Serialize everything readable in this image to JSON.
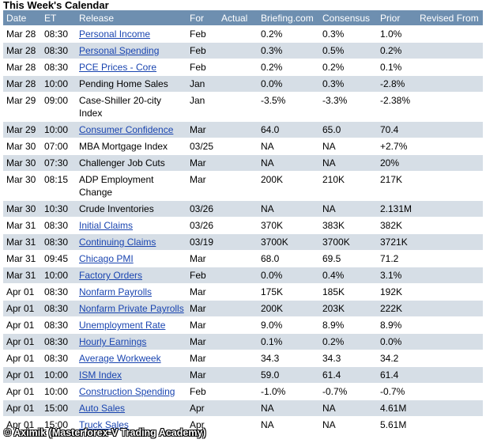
{
  "title": "This Week's Calendar",
  "columns": [
    "Date",
    "ET",
    "Release",
    "For",
    "Actual",
    "Briefing.com",
    "Consensus",
    "Prior",
    "Revised From"
  ],
  "rows": [
    {
      "date": "Mar 28",
      "et": "08:30",
      "release": "Personal Income",
      "link": true,
      "for": "Feb",
      "actual": "",
      "briefing": "0.2%",
      "consensus": "0.3%",
      "prior": "1.0%",
      "revised": ""
    },
    {
      "date": "Mar 28",
      "et": "08:30",
      "release": "Personal Spending",
      "link": true,
      "for": "Feb",
      "actual": "",
      "briefing": "0.3%",
      "consensus": "0.5%",
      "prior": "0.2%",
      "revised": ""
    },
    {
      "date": "Mar 28",
      "et": "08:30",
      "release": "PCE Prices - Core",
      "link": true,
      "for": "Feb",
      "actual": "",
      "briefing": "0.2%",
      "consensus": "0.2%",
      "prior": "0.1%",
      "revised": ""
    },
    {
      "date": "Mar 28",
      "et": "10:00",
      "release": "Pending Home Sales",
      "link": false,
      "for": "Jan",
      "actual": "",
      "briefing": "0.0%",
      "consensus": "0.3%",
      "prior": "-2.8%",
      "revised": ""
    },
    {
      "date": "Mar 29",
      "et": "09:00",
      "release": "Case-Shiller 20-city Index",
      "link": false,
      "for": "Jan",
      "actual": "",
      "briefing": "-3.5%",
      "consensus": "-3.3%",
      "prior": "-2.38%",
      "revised": ""
    },
    {
      "date": "Mar 29",
      "et": "10:00",
      "release": "Consumer Confidence",
      "link": true,
      "for": "Mar",
      "actual": "",
      "briefing": "64.0",
      "consensus": "65.0",
      "prior": "70.4",
      "revised": ""
    },
    {
      "date": "Mar 30",
      "et": "07:00",
      "release": "MBA Mortgage Index",
      "link": false,
      "for": "03/25",
      "actual": "",
      "briefing": "NA",
      "consensus": "NA",
      "prior": "+2.7%",
      "revised": ""
    },
    {
      "date": "Mar 30",
      "et": "07:30",
      "release": "Challenger Job Cuts",
      "link": false,
      "for": "Mar",
      "actual": "",
      "briefing": "NA",
      "consensus": "NA",
      "prior": "20%",
      "revised": ""
    },
    {
      "date": "Mar 30",
      "et": "08:15",
      "release": "ADP Employment Change",
      "link": false,
      "for": "Mar",
      "actual": "",
      "briefing": "200K",
      "consensus": "210K",
      "prior": "217K",
      "revised": ""
    },
    {
      "date": "Mar 30",
      "et": "10:30",
      "release": "Crude Inventories",
      "link": false,
      "for": "03/26",
      "actual": "",
      "briefing": "NA",
      "consensus": "NA",
      "prior": "2.131M",
      "revised": ""
    },
    {
      "date": "Mar 31",
      "et": "08:30",
      "release": "Initial Claims",
      "link": true,
      "for": "03/26",
      "actual": "",
      "briefing": "370K",
      "consensus": "383K",
      "prior": "382K",
      "revised": ""
    },
    {
      "date": "Mar 31",
      "et": "08:30",
      "release": "Continuing Claims",
      "link": true,
      "for": "03/19",
      "actual": "",
      "briefing": "3700K",
      "consensus": "3700K",
      "prior": "3721K",
      "revised": ""
    },
    {
      "date": "Mar 31",
      "et": "09:45",
      "release": "Chicago PMI",
      "link": true,
      "for": "Mar",
      "actual": "",
      "briefing": "68.0",
      "consensus": "69.5",
      "prior": "71.2",
      "revised": ""
    },
    {
      "date": "Mar 31",
      "et": "10:00",
      "release": "Factory Orders",
      "link": true,
      "for": "Feb",
      "actual": "",
      "briefing": "0.0%",
      "consensus": "0.4%",
      "prior": "3.1%",
      "revised": ""
    },
    {
      "date": "Apr 01",
      "et": "08:30",
      "release": "Nonfarm Payrolls",
      "link": true,
      "for": "Mar",
      "actual": "",
      "briefing": "175K",
      "consensus": "185K",
      "prior": "192K",
      "revised": ""
    },
    {
      "date": "Apr 01",
      "et": "08:30",
      "release": "Nonfarm Private Payrolls",
      "link": true,
      "for": "Mar",
      "actual": "",
      "briefing": "200K",
      "consensus": "203K",
      "prior": "222K",
      "revised": ""
    },
    {
      "date": "Apr 01",
      "et": "08:30",
      "release": "Unemployment Rate",
      "link": true,
      "for": "Mar",
      "actual": "",
      "briefing": "9.0%",
      "consensus": "8.9%",
      "prior": "8.9%",
      "revised": ""
    },
    {
      "date": "Apr 01",
      "et": "08:30",
      "release": "Hourly Earnings",
      "link": true,
      "for": "Mar",
      "actual": "",
      "briefing": "0.1%",
      "consensus": "0.2%",
      "prior": "0.0%",
      "revised": ""
    },
    {
      "date": "Apr 01",
      "et": "08:30",
      "release": "Average Workweek",
      "link": true,
      "for": "Mar",
      "actual": "",
      "briefing": "34.3",
      "consensus": "34.3",
      "prior": "34.2",
      "revised": ""
    },
    {
      "date": "Apr 01",
      "et": "10:00",
      "release": "ISM Index",
      "link": true,
      "for": "Mar",
      "actual": "",
      "briefing": "59.0",
      "consensus": "61.4",
      "prior": "61.4",
      "revised": ""
    },
    {
      "date": "Apr 01",
      "et": "10:00",
      "release": "Construction Spending",
      "link": true,
      "for": "Feb",
      "actual": "",
      "briefing": "-1.0%",
      "consensus": "-0.7%",
      "prior": "-0.7%",
      "revised": ""
    },
    {
      "date": "Apr 01",
      "et": "15:00",
      "release": "Auto Sales",
      "link": true,
      "for": "Apr",
      "actual": "",
      "briefing": "NA",
      "consensus": "NA",
      "prior": "4.61M",
      "revised": ""
    },
    {
      "date": "Apr 01",
      "et": "15:00",
      "release": "Truck Sales",
      "link": true,
      "for": "Apr",
      "actual": "",
      "briefing": "NA",
      "consensus": "NA",
      "prior": "5.61M",
      "revised": ""
    }
  ],
  "watermark": "© Aximik (Masterforex-V Trading Academy)",
  "colors": {
    "header_bg": "#6e8fb0",
    "row_alt": "#d6dee6",
    "link": "#1a45b0"
  }
}
